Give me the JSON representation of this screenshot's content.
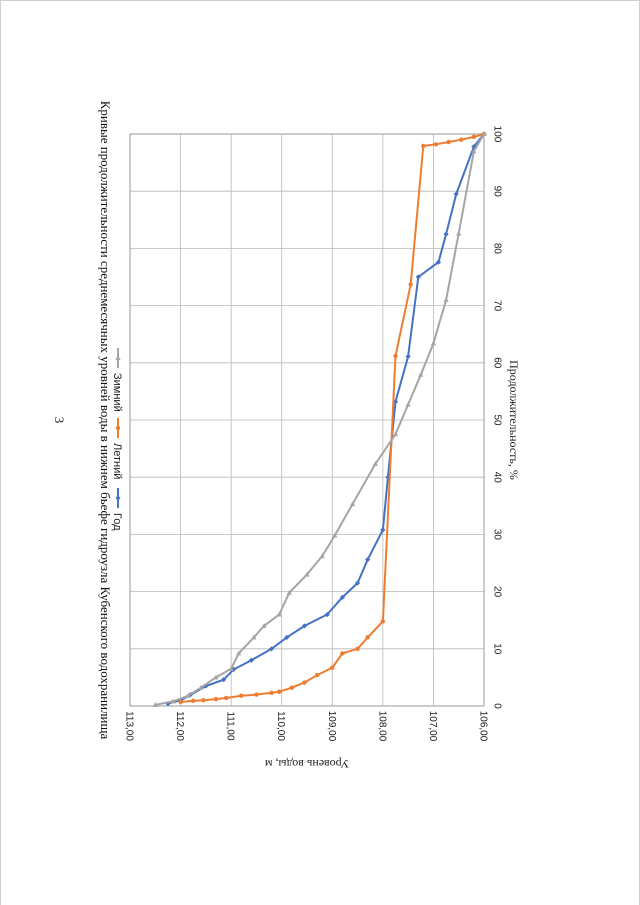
{
  "page": {
    "number": "3"
  },
  "chart_data": {
    "type": "line",
    "title": "Кривые продолжительности среднемесячных уровней воды в нижнем бьефе гидроузла Кубенского водохранилища",
    "xlabel": "Продолжительность, %",
    "ylabel": "Уровень воды, м",
    "xlim": [
      0,
      100
    ],
    "ylim": [
      106,
      113
    ],
    "x_ticks": [
      "0",
      "10",
      "20",
      "30",
      "40",
      "50",
      "60",
      "70",
      "80",
      "90",
      "100"
    ],
    "y_ticks": [
      "106,00",
      "107,00",
      "108,00",
      "109,00",
      "110,00",
      "111,00",
      "112,00",
      "113,00"
    ],
    "grid": true,
    "legend_position": "top",
    "series": [
      {
        "name": "Год",
        "color": "#4472c4",
        "marker": "diamond",
        "points": [
          [
            0.4,
            112.25
          ],
          [
            1.0,
            112.0
          ],
          [
            2.0,
            111.8
          ],
          [
            3.5,
            111.5
          ],
          [
            4.6,
            111.15
          ],
          [
            6.4,
            110.95
          ],
          [
            8.0,
            110.6
          ],
          [
            10.0,
            110.2
          ],
          [
            12.0,
            109.9
          ],
          [
            14.0,
            109.55
          ],
          [
            16.0,
            109.1
          ],
          [
            19.0,
            108.8
          ],
          [
            21.5,
            108.5
          ],
          [
            25.6,
            108.3
          ],
          [
            30.8,
            108.0
          ],
          [
            40.0,
            107.9
          ],
          [
            53.2,
            107.75
          ],
          [
            61.1,
            107.5
          ],
          [
            75.0,
            107.3
          ],
          [
            77.6,
            106.9
          ],
          [
            82.5,
            106.75
          ],
          [
            89.5,
            106.55
          ],
          [
            97.8,
            106.2
          ],
          [
            100.0,
            106.0
          ]
        ]
      },
      {
        "name": "Летний",
        "color": "#ed7d31",
        "marker": "circle",
        "points": [
          [
            0.7,
            112.0
          ],
          [
            0.9,
            111.75
          ],
          [
            1.0,
            111.55
          ],
          [
            1.2,
            111.3
          ],
          [
            1.4,
            111.1
          ],
          [
            1.8,
            110.8
          ],
          [
            2.0,
            110.5
          ],
          [
            2.3,
            110.2
          ],
          [
            2.5,
            110.05
          ],
          [
            3.2,
            109.8
          ],
          [
            4.1,
            109.55
          ],
          [
            5.4,
            109.3
          ],
          [
            6.7,
            109.0
          ],
          [
            9.2,
            108.8
          ],
          [
            10.0,
            108.5
          ],
          [
            12.0,
            108.3
          ],
          [
            14.8,
            108.0
          ],
          [
            61.2,
            107.75
          ],
          [
            73.7,
            107.45
          ],
          [
            97.9,
            107.2
          ],
          [
            98.2,
            106.95
          ],
          [
            98.6,
            106.7
          ],
          [
            99.0,
            106.45
          ],
          [
            99.5,
            106.2
          ],
          [
            100.0,
            106.0
          ]
        ]
      },
      {
        "name": "Зимний",
        "color": "#a5a5a5",
        "marker": "triangle",
        "points": [
          [
            0.2,
            112.5
          ],
          [
            0.8,
            112.15
          ],
          [
            1.8,
            111.85
          ],
          [
            3.2,
            111.6
          ],
          [
            5.0,
            111.3
          ],
          [
            6.5,
            111.0
          ],
          [
            9.2,
            110.85
          ],
          [
            12.0,
            110.55
          ],
          [
            14.0,
            110.35
          ],
          [
            16.0,
            110.05
          ],
          [
            19.8,
            109.85
          ],
          [
            23.0,
            109.5
          ],
          [
            26.2,
            109.2
          ],
          [
            29.8,
            108.95
          ],
          [
            35.3,
            108.6
          ],
          [
            42.3,
            108.15
          ],
          [
            47.5,
            107.75
          ],
          [
            52.7,
            107.5
          ],
          [
            57.9,
            107.25
          ],
          [
            63.4,
            107.0
          ],
          [
            71.0,
            106.75
          ],
          [
            82.6,
            106.5
          ],
          [
            97.0,
            106.2
          ],
          [
            100.0,
            106.0
          ]
        ]
      }
    ]
  }
}
